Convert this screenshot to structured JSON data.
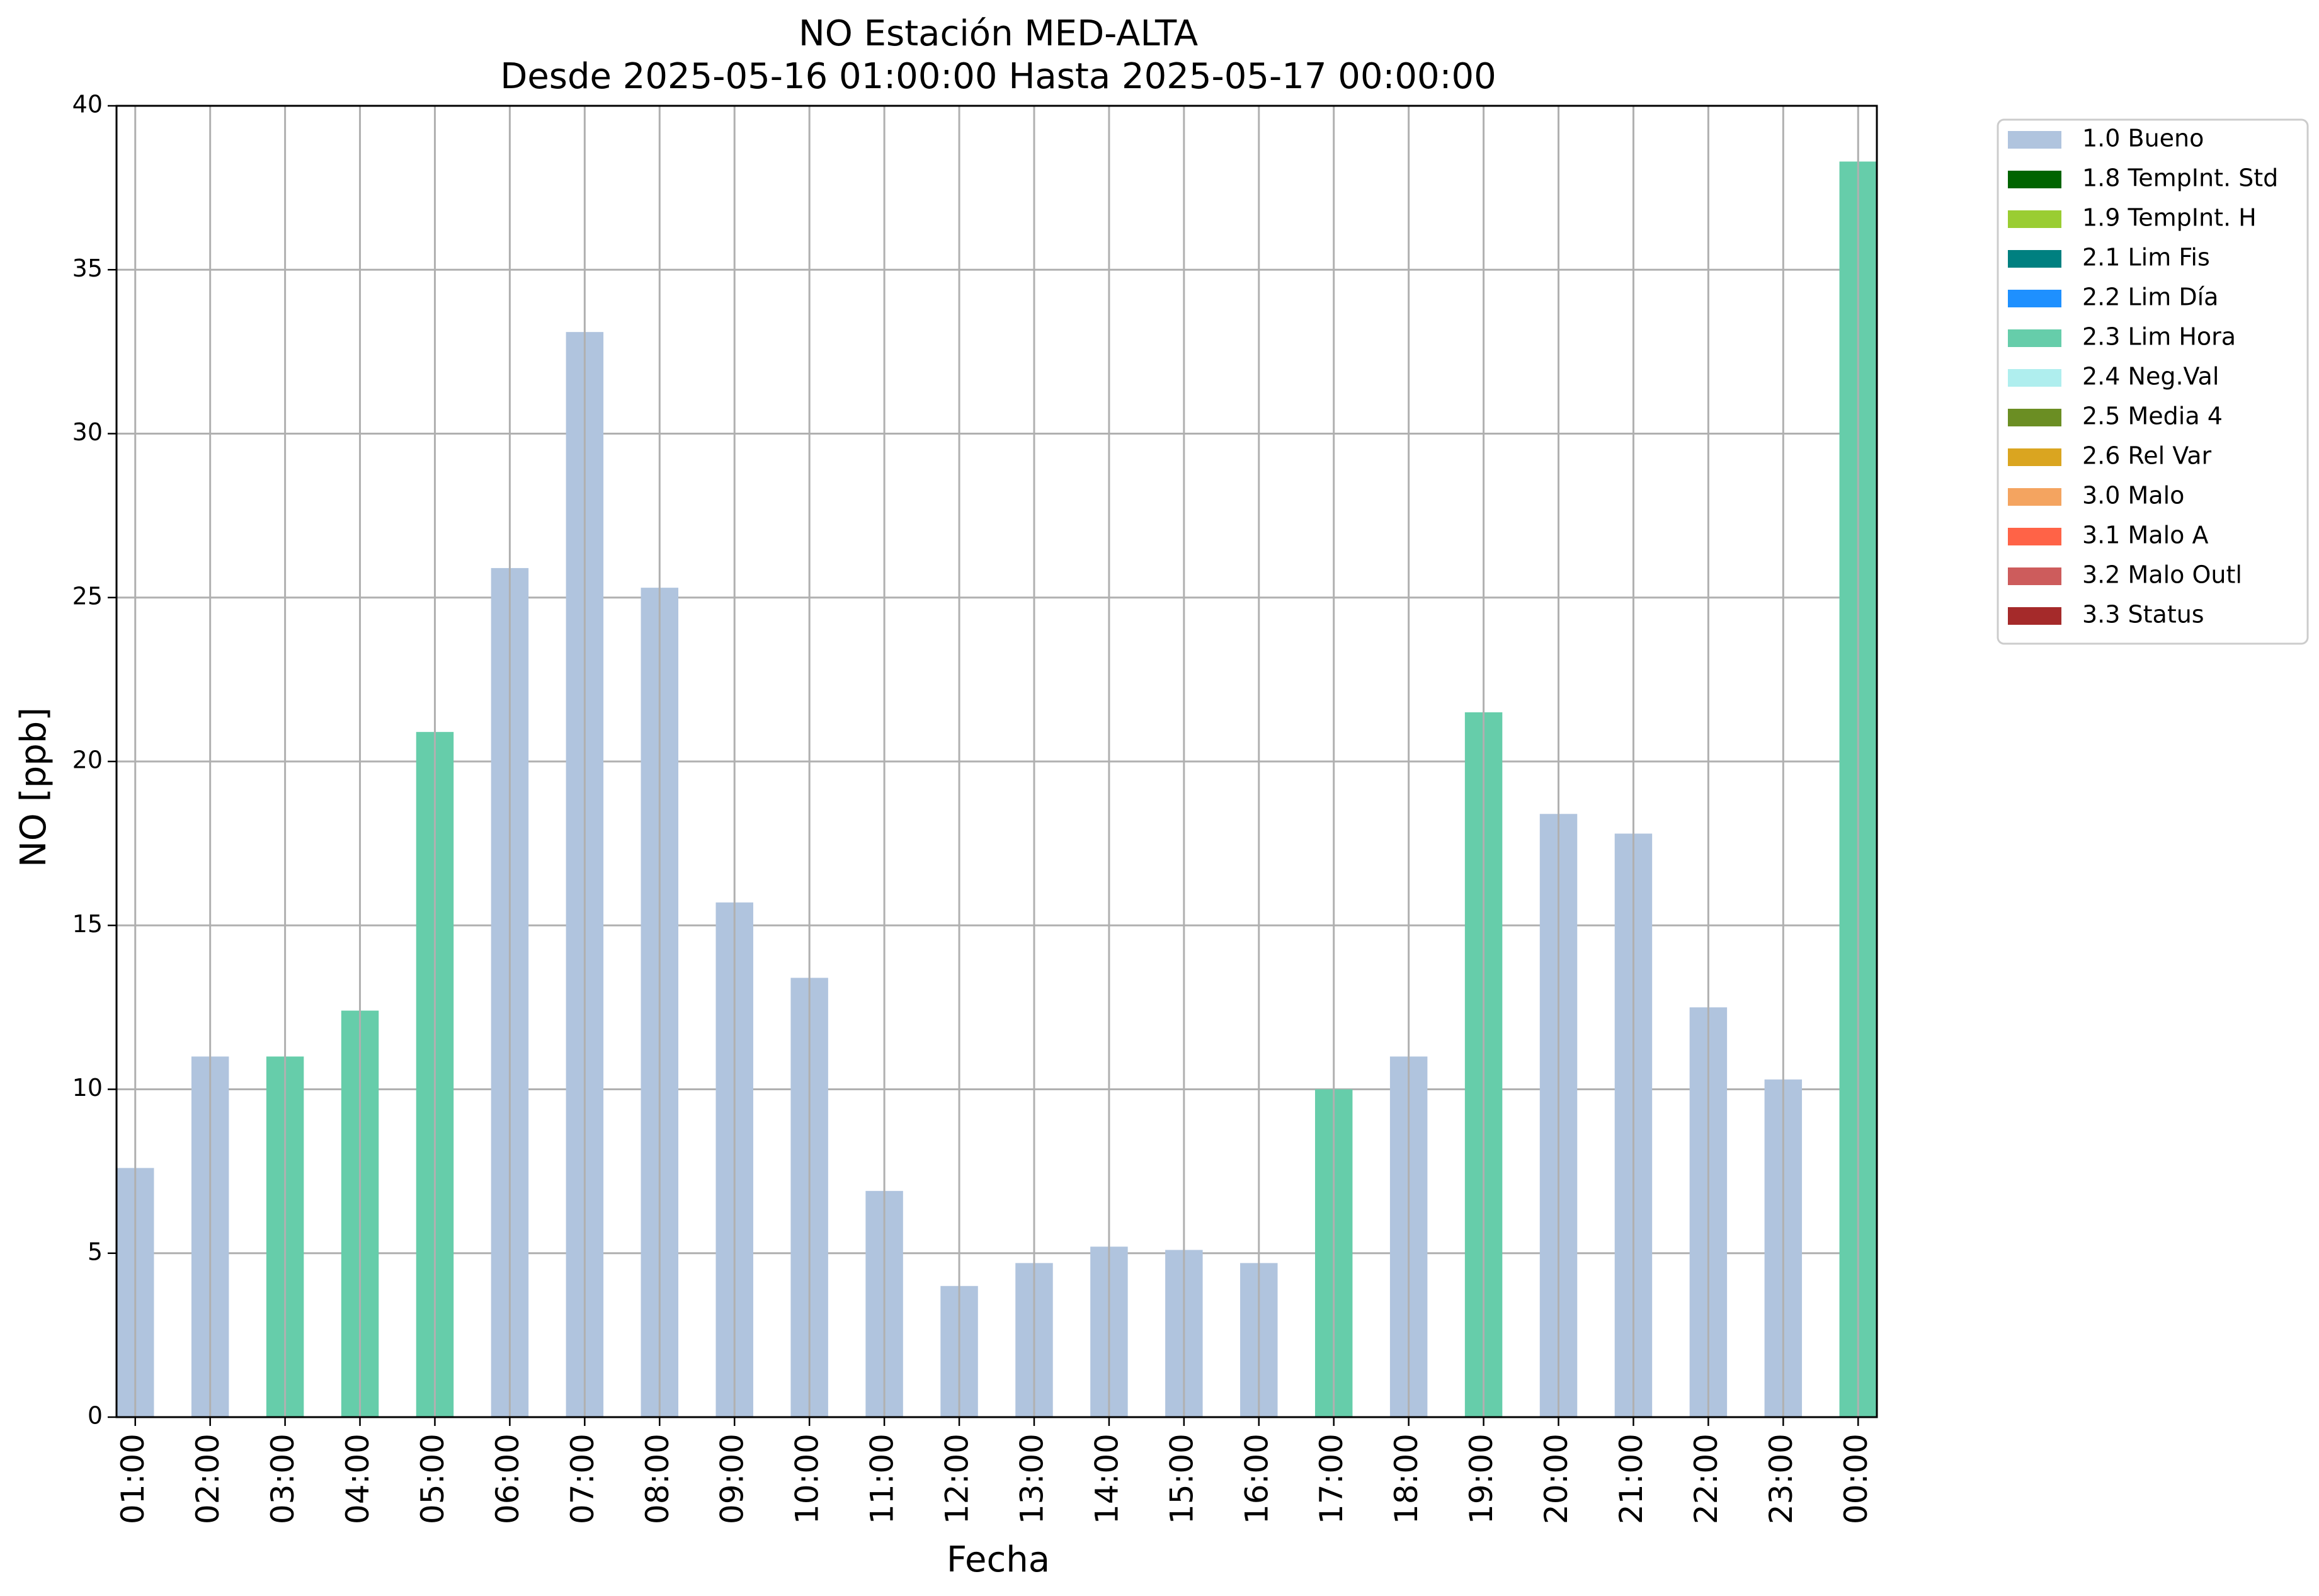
{
  "chart_data": {
    "type": "bar",
    "title": [
      "NO Estación MED-ALTA",
      "Desde 2025-05-16 01:00:00 Hasta 2025-05-17 00:00:00"
    ],
    "xlabel": "Fecha",
    "ylabel": "NO [ppb]",
    "ylim": [
      0,
      40
    ],
    "yticks": [
      0,
      5,
      10,
      15,
      20,
      25,
      30,
      35,
      40
    ],
    "grid": true,
    "legend_position": "outside-right-top",
    "categories": [
      "01:00",
      "02:00",
      "03:00",
      "04:00",
      "05:00",
      "06:00",
      "07:00",
      "08:00",
      "09:00",
      "10:00",
      "11:00",
      "12:00",
      "13:00",
      "14:00",
      "15:00",
      "16:00",
      "17:00",
      "18:00",
      "19:00",
      "20:00",
      "21:00",
      "22:00",
      "23:00",
      "00:00"
    ],
    "values": [
      7.6,
      11.0,
      11.0,
      12.4,
      20.9,
      25.9,
      33.1,
      25.3,
      15.7,
      13.4,
      6.9,
      4.0,
      4.7,
      5.2,
      5.1,
      4.7,
      10.0,
      11.0,
      21.5,
      18.4,
      17.8,
      12.5,
      10.3,
      38.3
    ],
    "flags": [
      "1.0 Bueno",
      "1.0 Bueno",
      "2.3 Lim Hora",
      "2.3 Lim Hora",
      "2.3 Lim Hora",
      "1.0 Bueno",
      "1.0 Bueno",
      "1.0 Bueno",
      "1.0 Bueno",
      "1.0 Bueno",
      "1.0 Bueno",
      "1.0 Bueno",
      "1.0 Bueno",
      "1.0 Bueno",
      "1.0 Bueno",
      "1.0 Bueno",
      "2.3 Lim Hora",
      "1.0 Bueno",
      "2.3 Lim Hora",
      "1.0 Bueno",
      "1.0 Bueno",
      "1.0 Bueno",
      "1.0 Bueno",
      "2.3 Lim Hora"
    ],
    "legend": [
      {
        "label": "1.0 Bueno",
        "color": "#b0c4de"
      },
      {
        "label": "1.8 TempInt. Std",
        "color": "#006400"
      },
      {
        "label": "1.9 TempInt. H",
        "color": "#9acd32"
      },
      {
        "label": "2.1 Lim Fis",
        "color": "#008080"
      },
      {
        "label": "2.2 Lim Día",
        "color": "#1e90ff"
      },
      {
        "label": "2.3 Lim Hora",
        "color": "#66cdaa"
      },
      {
        "label": "2.4 Neg.Val",
        "color": "#afeeee"
      },
      {
        "label": "2.5 Media 4",
        "color": "#6b8e23"
      },
      {
        "label": "2.6 Rel Var",
        "color": "#daa520"
      },
      {
        "label": "3.0 Malo",
        "color": "#f4a460"
      },
      {
        "label": "3.1 Malo A",
        "color": "#ff6347"
      },
      {
        "label": "3.2 Malo Outl",
        "color": "#cd5c5c"
      },
      {
        "label": "3.3 Status",
        "color": "#a52a2a"
      }
    ]
  }
}
